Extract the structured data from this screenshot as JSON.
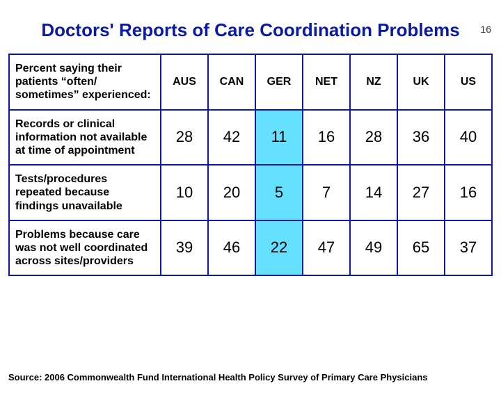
{
  "page_number": "16",
  "title": "Doctors' Reports of Care Coordination Problems",
  "colors": {
    "title_color": "#0a1aa6",
    "border_color": "#0a1aa6",
    "highlight_bg": "#66e0ff",
    "background": "#ffffff"
  },
  "table": {
    "header_label": "Percent saying their patients “often/ sometimes” experienced:",
    "columns": [
      "AUS",
      "CAN",
      "GER",
      "NET",
      "NZ",
      "UK",
      "US"
    ],
    "highlight_column_index": 2,
    "rows": [
      {
        "label": "Records or clinical information not available at time of appointment",
        "values": [
          "28",
          "42",
          "11",
          "16",
          "28",
          "36",
          "40"
        ]
      },
      {
        "label": "Tests/procedures repeated because findings unavailable",
        "values": [
          "10",
          "20",
          "5",
          "7",
          "14",
          "27",
          "16"
        ]
      },
      {
        "label": "Problems because care was not well coordinated across sites/providers",
        "values": [
          "39",
          "46",
          "22",
          "47",
          "49",
          "65",
          "37"
        ]
      }
    ]
  },
  "source": "Source: 2006 Commonwealth Fund International Health Policy Survey of Primary Care Physicians"
}
